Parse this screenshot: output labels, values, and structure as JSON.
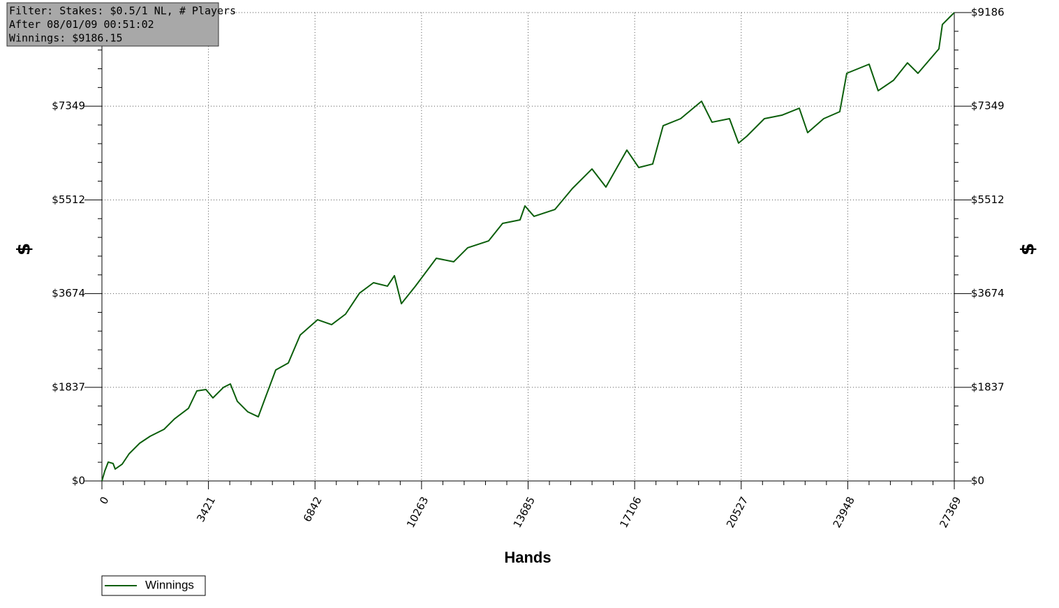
{
  "chart_data": {
    "type": "line",
    "annotations": [
      "Filter: Stakes: $0.5/1 NL, # Players",
      "After 08/01/09 00:51:02",
      "Winnings: $9186.15"
    ],
    "xlabel": "Hands",
    "ylabel": "$",
    "x": [
      0,
      90,
      202,
      359,
      426,
      650,
      874,
      1210,
      1547,
      1995,
      2331,
      2779,
      3048,
      3340,
      3564,
      3900,
      4124,
      4348,
      4685,
      5021,
      5245,
      5581,
      5985,
      6366,
      6926,
      7375,
      7823,
      8271,
      8720,
      9168,
      9392,
      9616,
      10065,
      10737,
      11297,
      11745,
      12418,
      12866,
      13426,
      13583,
      13875,
      14547,
      15107,
      15735,
      16183,
      16856,
      17237,
      17685,
      18021,
      18582,
      19254,
      19590,
      20151,
      20442,
      20711,
      21271,
      21832,
      22392,
      22661,
      23176,
      23692,
      23916,
      24634,
      24925,
      25418,
      25866,
      26202,
      26875,
      26987,
      27211,
      27369
    ],
    "series": [
      {
        "name": "Winnings",
        "color": "#0b5e0b",
        "values": [
          0,
          192,
          370,
          342,
          233,
          329,
          534,
          739,
          876,
          1013,
          1218,
          1424,
          1766,
          1793,
          1629,
          1834,
          1903,
          1561,
          1355,
          1259,
          1629,
          2177,
          2314,
          2861,
          3162,
          3066,
          3272,
          3683,
          3888,
          3820,
          4025,
          3477,
          3820,
          4367,
          4299,
          4573,
          4709,
          5052,
          5120,
          5394,
          5189,
          5325,
          5736,
          6119,
          5764,
          6489,
          6147,
          6216,
          6968,
          7105,
          7447,
          7036,
          7105,
          6626,
          6763,
          7105,
          7173,
          7310,
          6831,
          7105,
          7242,
          7995,
          8173,
          7653,
          7858,
          8200,
          7995,
          8474,
          8953,
          9090,
          9186
        ]
      }
    ],
    "xlim": [
      0,
      27369
    ],
    "xticks": [
      0,
      3421,
      6842,
      10263,
      13685,
      17106,
      20527,
      23948,
      27369
    ],
    "ylim": [
      0,
      9186
    ],
    "yticks": [
      {
        "value": 0,
        "label": "$0"
      },
      {
        "value": 1837,
        "label": "$1837"
      },
      {
        "value": 3674,
        "label": "$3674"
      },
      {
        "value": 5512,
        "label": "$5512"
      },
      {
        "value": 7349,
        "label": "$7349"
      },
      {
        "value": 9186,
        "label": "$9186"
      }
    ],
    "grid": true,
    "legend": "bottom-left"
  }
}
